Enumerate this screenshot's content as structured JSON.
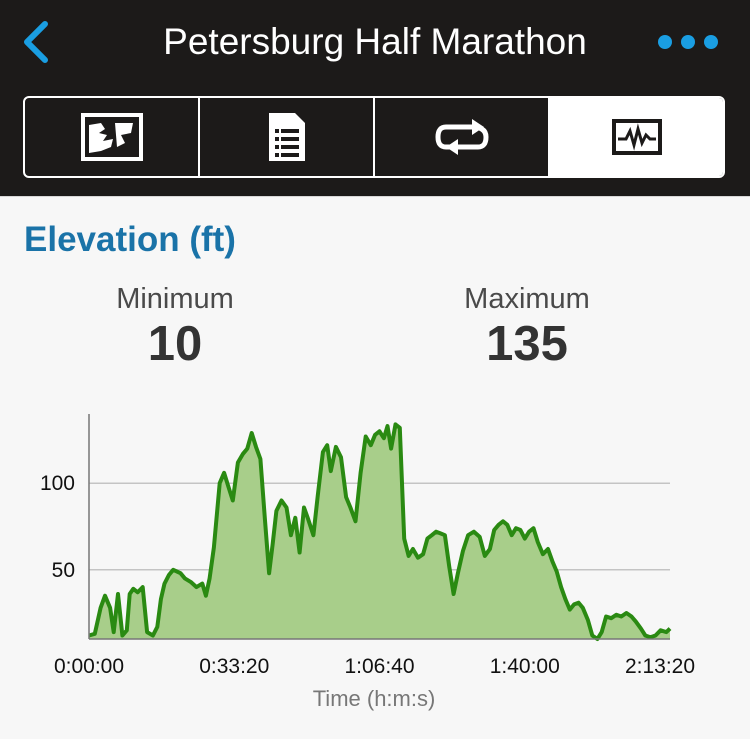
{
  "header": {
    "title": "Petersburg Half Marathon",
    "back_icon": "chevron-left-icon",
    "more_icon": "more-horizontal-icon",
    "accent_color": "#1a9ee2"
  },
  "tabs": [
    {
      "icon": "map-icon",
      "active": false
    },
    {
      "icon": "details-list-icon",
      "active": false
    },
    {
      "icon": "laps-loop-icon",
      "active": false
    },
    {
      "icon": "chart-icon",
      "active": true
    }
  ],
  "section": {
    "title": "Elevation (ft)",
    "min_label": "Minimum",
    "min_value": "10",
    "max_label": "Maximum",
    "max_value": "135"
  },
  "chart_data": {
    "type": "area",
    "xlabel": "Time (h:m:s)",
    "ylabel": "",
    "x_ticks": [
      "0:00:00",
      "0:33:20",
      "1:06:40",
      "1:40:00",
      "2:13:20"
    ],
    "y_ticks": [
      50,
      100
    ],
    "xlim": [
      0,
      8000
    ],
    "ylim": [
      10,
      140
    ],
    "grid": true,
    "line_color": "#2a8a12",
    "fill_color": "#a8ce8a",
    "series": [
      {
        "x": [
          0,
          80,
          160,
          220,
          290,
          340,
          400,
          460,
          520,
          560,
          610,
          670,
          740,
          800,
          880,
          940,
          990,
          1040,
          1100,
          1160,
          1260,
          1320,
          1400,
          1480,
          1560,
          1610,
          1660,
          1720,
          1800,
          1860,
          1920,
          1980,
          2050,
          2120,
          2180,
          2240,
          2300,
          2360,
          2420,
          2480,
          2530,
          2580,
          2650,
          2720,
          2780,
          2840,
          2900,
          2960,
          3020,
          3090,
          3150,
          3220,
          3280,
          3330,
          3400,
          3470,
          3540,
          3600,
          3670,
          3740,
          3810,
          3880,
          3940,
          4000,
          4060,
          4110,
          4160,
          4220,
          4280,
          4340,
          4400,
          4460,
          4530,
          4600,
          4660,
          4720,
          4780,
          4840,
          4900,
          4960,
          5020,
          5080,
          5150,
          5220,
          5300,
          5380,
          5450,
          5520,
          5580,
          5640,
          5700,
          5760,
          5820,
          5880,
          5940,
          6000,
          6060,
          6120,
          6180,
          6250,
          6320,
          6380,
          6440,
          6500,
          6560,
          6620,
          6680,
          6740,
          6800,
          6870,
          6930,
          7000,
          7060,
          7120,
          7190,
          7260,
          7330,
          7400,
          7470,
          7530,
          7600,
          7660,
          7730,
          7800,
          7870,
          7950,
          8000
        ],
        "y": [
          12,
          13,
          28,
          35,
          28,
          14,
          36,
          12,
          15,
          36,
          39,
          37,
          40,
          14,
          12,
          17,
          33,
          42,
          47,
          50,
          48,
          45,
          43,
          40,
          42,
          35,
          45,
          63,
          100,
          106,
          98,
          90,
          112,
          117,
          120,
          129,
          121,
          114,
          80,
          48,
          65,
          84,
          90,
          86,
          70,
          80,
          60,
          86,
          79,
          70,
          93,
          118,
          122,
          107,
          121,
          115,
          92,
          86,
          78,
          106,
          127,
          122,
          128,
          130,
          126,
          133,
          120,
          134,
          132,
          68,
          58,
          62,
          57,
          59,
          68,
          70,
          72,
          71,
          70,
          52,
          36,
          48,
          61,
          70,
          72,
          69,
          58,
          62,
          73,
          76,
          78,
          76,
          70,
          74,
          73,
          68,
          72,
          74,
          66,
          59,
          62,
          55,
          49,
          40,
          33,
          27,
          30,
          31,
          28,
          21,
          12,
          10,
          14,
          23,
          22,
          24,
          23,
          25,
          23,
          20,
          16,
          12,
          11,
          12,
          15,
          14,
          16
        ]
      }
    ]
  }
}
